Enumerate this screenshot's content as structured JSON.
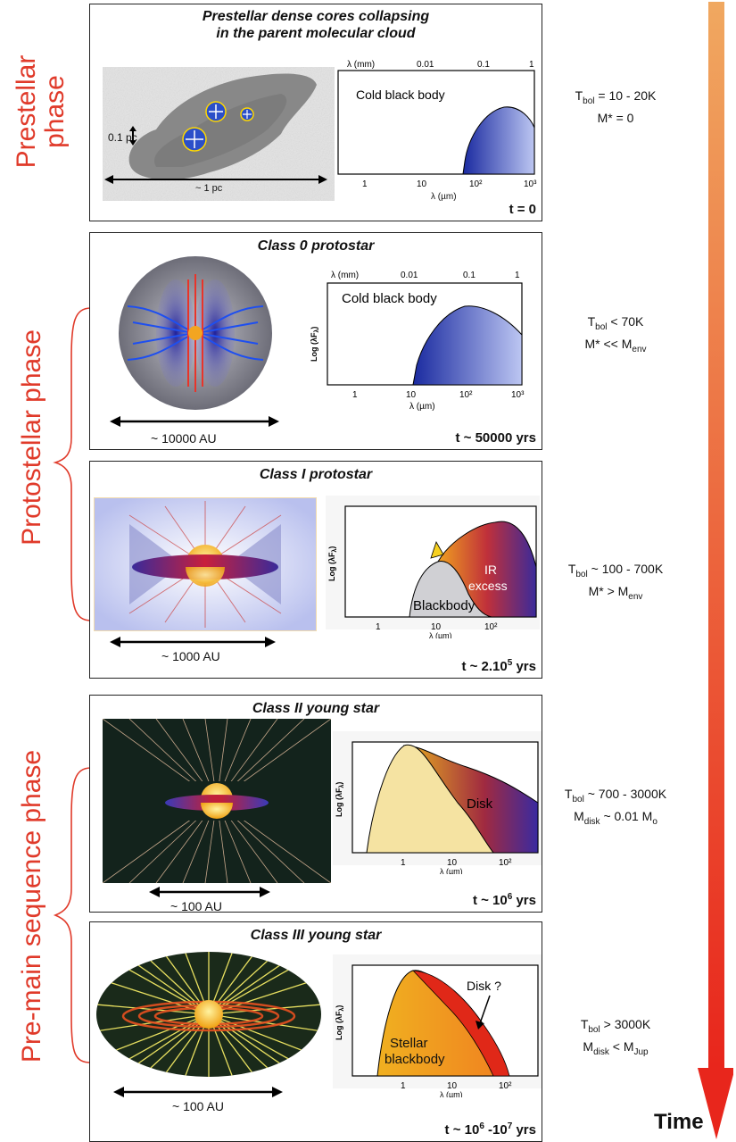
{
  "phases": {
    "prestellar": "Prestellar phase",
    "protostellar": "Protostellar phase",
    "premain": "Pre-main sequence phase"
  },
  "panels": [
    {
      "title": "Prestellar dense cores collapsing in the parent molecular cloud",
      "title_line1": "Prestellar dense cores collapsing",
      "title_line2": "in the parent molecular cloud",
      "time": "t = 0",
      "scale": "~ 1 pc",
      "scale2": "0.1 pc",
      "sed_label": "Cold black body",
      "sed_top_axis": "λ (mm)",
      "sed_top_ticks": [
        "0.01",
        "0.1",
        "1"
      ],
      "sed_bottom_ticks": [
        "1",
        "10",
        "10²",
        "10³"
      ],
      "sed_xlabel": "λ (µm)",
      "params_line1": "T",
      "params_line1_sub": "bol",
      "params_line1_rest": " = 10 - 20K",
      "params_line2": "M* = 0"
    },
    {
      "title": "Class 0 protostar",
      "time": "t ~ 50000 yrs",
      "scale": "~ 10000 AU",
      "sed_label": "Cold black body",
      "sed_ylabel": "Log (λF",
      "sed_ylabel_sub": "λ",
      "sed_ylabel_close": ")",
      "sed_top_axis": "λ (mm)",
      "sed_top_ticks": [
        "0.01",
        "0.1",
        "1"
      ],
      "sed_bottom_ticks": [
        "1",
        "10",
        "10²",
        "10³"
      ],
      "sed_xlabel": "λ (µm)",
      "params_a": "T",
      "params_a_sub": "bol",
      "params_a_rest": " < 70K",
      "params_b": "M* << M",
      "params_b_sub": "env"
    },
    {
      "title": "Class I protostar",
      "time": "t ~ 2.10",
      "time_sup": "5",
      "time_rest": " yrs",
      "scale": "~ 1000 AU",
      "sed_label1": "IR",
      "sed_label2": "excess",
      "sed_label3": "Blackbody",
      "sed_bottom_ticks": [
        "1",
        "10",
        "10²"
      ],
      "sed_xlabel": "λ (µm)",
      "params_a": "T",
      "params_a_sub": "bol",
      "params_a_rest": " ~ 100 - 700K",
      "params_b": "M* > M",
      "params_b_sub": "env"
    },
    {
      "title": "Class II young star",
      "time": "t ~ 10",
      "time_sup": "6",
      "time_rest": " yrs",
      "scale": "~ 100 AU",
      "sed_label": "Disk",
      "sed_bottom_ticks": [
        "1",
        "10",
        "10²"
      ],
      "sed_xlabel": "λ (µm)",
      "params_a": "T",
      "params_a_sub": "bol",
      "params_a_rest": " ~ 700 - 3000K",
      "params_b": "M",
      "params_b_sub": "disk",
      "params_b_rest": " ~ 0.01 M",
      "params_b_sub2": "o"
    },
    {
      "title": "Class III young star",
      "time": "t ~ 10",
      "time_sup": "6",
      "time_mid": " -10",
      "time_sup2": "7",
      "time_rest": " yrs",
      "scale": "~ 100 AU",
      "sed_label1": "Disk ?",
      "sed_label2": "Stellar",
      "sed_label3": "blackbody",
      "sed_bottom_ticks": [
        "1",
        "10",
        "10²"
      ],
      "sed_xlabel": "λ (µm)",
      "params_a": "T",
      "params_a_sub": "bol",
      "params_a_rest": " > 3000K",
      "params_b": "M",
      "params_b_sub": "disk",
      "params_b_rest": " < M",
      "params_b_sub2": "Jup"
    }
  ],
  "time_label": "Time",
  "colors": {
    "phase_text": "#e03a2a",
    "arrow_top": "#f0a860",
    "arrow_bottom": "#e8261c"
  }
}
